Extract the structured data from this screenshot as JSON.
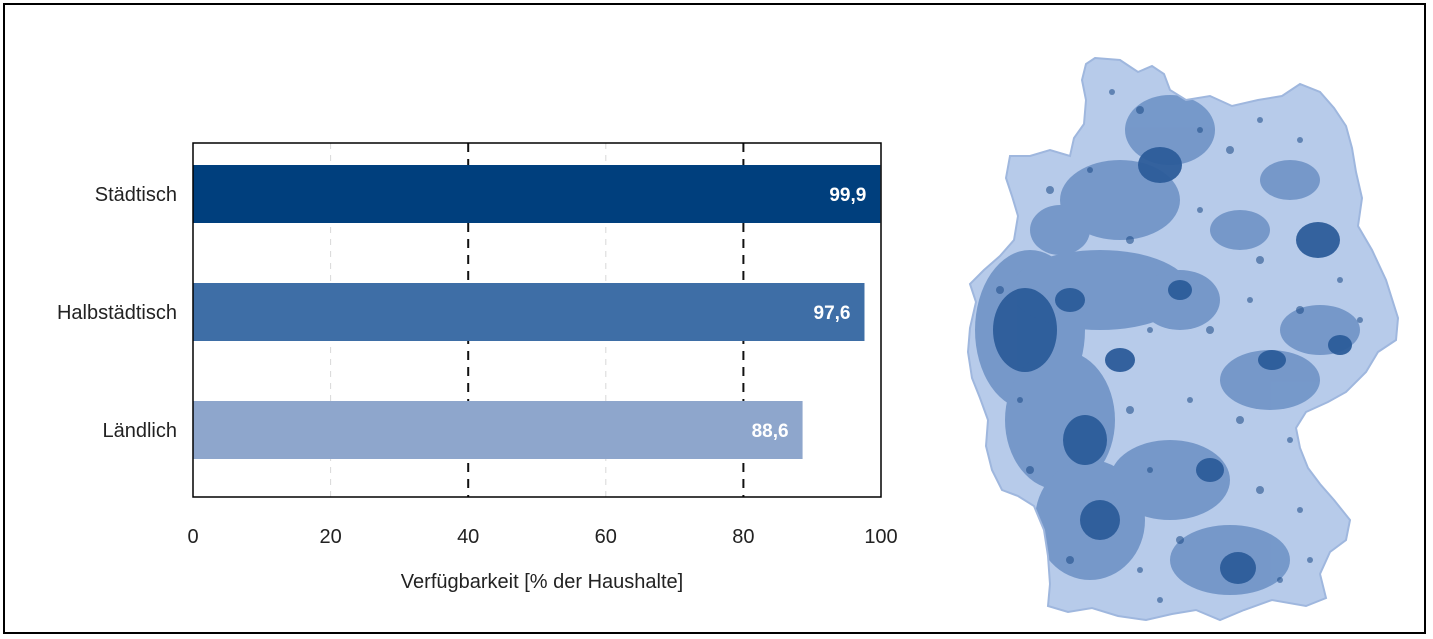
{
  "chart_data": {
    "type": "bar",
    "orientation": "horizontal",
    "categories": [
      "Städtisch",
      "Halbstädtisch",
      "Ländlich"
    ],
    "values": [
      99.9,
      97.6,
      88.6
    ],
    "value_labels": [
      "99,9",
      "97,6",
      "88,6"
    ],
    "xlabel": "Verfügbarkeit [% der Haushalte]",
    "ylabel": "",
    "xlim": [
      0,
      100
    ],
    "xticks": [
      "0",
      "20",
      "40",
      "60",
      "80",
      "100"
    ],
    "grid": "vertical dashed lines at 40 and 80, faint lines at 20 and 60",
    "bar_colors": [
      "#003f7d",
      "#3e6ea6",
      "#8ea6cc"
    ]
  },
  "map": {
    "subject": "Germany",
    "colors": {
      "light": "#b7cbea",
      "medium": "#6f93c6",
      "dark": "#2c5c9a",
      "darkest": "#1b4a86"
    }
  }
}
